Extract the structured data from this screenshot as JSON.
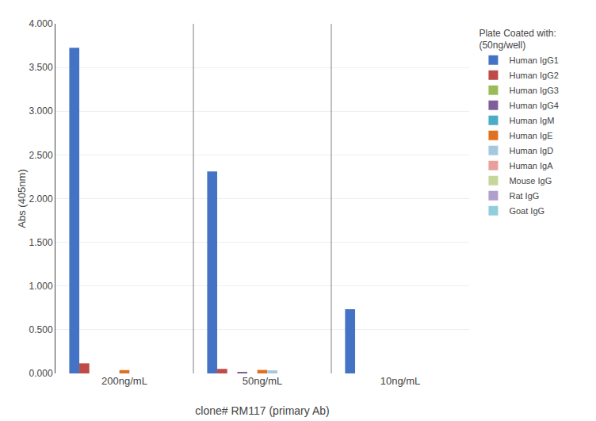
{
  "chart_data": {
    "type": "bar",
    "xlabel": "clone# RM117 (primary Ab)",
    "ylabel": "Abs (405nm)",
    "legend_title": "Plate Coated with:\n(50ng/well)",
    "categories": [
      "200ng/mL",
      "50ng/mL",
      "10ng/mL"
    ],
    "series": [
      {
        "name": "Human IgG1",
        "color": "#4472C4",
        "values": [
          3.725,
          2.31,
          0.735
        ]
      },
      {
        "name": "Human IgG2",
        "color": "#BE4B48",
        "values": [
          0.115,
          0.052,
          0.0
        ]
      },
      {
        "name": "Human IgG3",
        "color": "#9BBB59",
        "values": [
          0.0,
          0.0,
          0.0
        ]
      },
      {
        "name": "Human IgG4",
        "color": "#7F5F9A",
        "values": [
          0.0,
          0.018,
          0.0
        ]
      },
      {
        "name": "Human IgM",
        "color": "#4BACC6",
        "values": [
          0.0,
          0.0,
          0.0
        ]
      },
      {
        "name": "Human IgE",
        "color": "#E07020",
        "values": [
          0.038,
          0.04,
          0.0
        ]
      },
      {
        "name": "Human IgD",
        "color": "#A5C8E1",
        "values": [
          0.0,
          0.035,
          0.0
        ]
      },
      {
        "name": "Human IgA",
        "color": "#E8A09A",
        "values": [
          0.0,
          0.0,
          0.0
        ]
      },
      {
        "name": "Mouse IgG",
        "color": "#C6D69B",
        "values": [
          0.0,
          0.0,
          0.0
        ]
      },
      {
        "name": "Rat IgG",
        "color": "#B09FCC",
        "values": [
          0.0,
          0.0,
          0.0
        ]
      },
      {
        "name": "Goat IgG",
        "color": "#92CDDD",
        "values": [
          0.0,
          0.0,
          0.0
        ]
      }
    ],
    "ylim": [
      0,
      4.0
    ],
    "yticks": [
      {
        "value": 0.0,
        "label": "0.000"
      },
      {
        "value": 0.5,
        "label": "0.500"
      },
      {
        "value": 1.0,
        "label": "1.000"
      },
      {
        "value": 1.5,
        "label": "1.500"
      },
      {
        "value": 2.0,
        "label": "2.000"
      },
      {
        "value": 2.5,
        "label": "2.500"
      },
      {
        "value": 3.0,
        "label": "3.000"
      },
      {
        "value": 3.5,
        "label": "3.500"
      },
      {
        "value": 4.0,
        "label": "4.000"
      }
    ],
    "grid": true,
    "legend": "right"
  }
}
